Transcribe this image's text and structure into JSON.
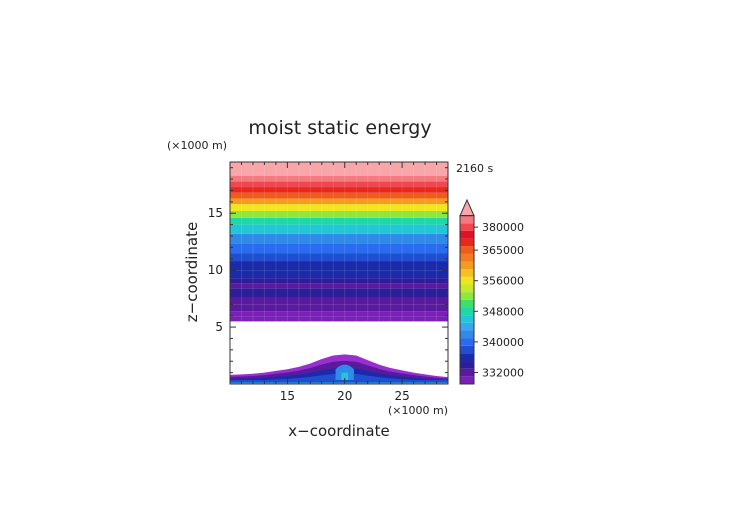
{
  "chart_data": {
    "type": "heatmap",
    "title": "moist static energy",
    "xlabel": "x−coordinate",
    "ylabel": "z−coordinate",
    "x_unit": "(×1000 m)",
    "y_unit": "(×1000 m)",
    "time_label": "2160 s",
    "xlim": [
      10,
      29
    ],
    "ylim": [
      0,
      19.5
    ],
    "x_ticks": [
      "15",
      "20",
      "25"
    ],
    "x_tick_values": [
      15,
      20,
      25
    ],
    "y_ticks": [
      "5",
      "10",
      "15"
    ],
    "y_tick_values": [
      5,
      10,
      15
    ],
    "layers": [
      {
        "z0": 5.5,
        "z1": 5.9,
        "value": 330000
      },
      {
        "z0": 5.9,
        "z1": 6.4,
        "value": 331000
      },
      {
        "z0": 6.4,
        "z1": 7.0,
        "value": 332000
      },
      {
        "z0": 7.0,
        "z1": 7.6,
        "value": 333000
      },
      {
        "z0": 7.6,
        "z1": 8.4,
        "value": 334000
      },
      {
        "z0": 8.4,
        "z1": 8.8,
        "value": 333000
      },
      {
        "z0": 8.8,
        "z1": 9.3,
        "value": 335000
      },
      {
        "z0": 9.3,
        "z1": 10.0,
        "value": 336000
      },
      {
        "z0": 10.0,
        "z1": 10.8,
        "value": 337000
      },
      {
        "z0": 10.8,
        "z1": 11.5,
        "value": 338000
      },
      {
        "z0": 11.5,
        "z1": 12.3,
        "value": 340000
      },
      {
        "z0": 12.3,
        "z1": 13.2,
        "value": 342000
      },
      {
        "z0": 13.2,
        "z1": 14.0,
        "value": 346000
      },
      {
        "z0": 14.0,
        "z1": 14.6,
        "value": 348000
      },
      {
        "z0": 14.6,
        "z1": 15.2,
        "value": 352000
      },
      {
        "z0": 15.2,
        "z1": 15.8,
        "value": 356000
      },
      {
        "z0": 15.8,
        "z1": 16.3,
        "value": 360000
      },
      {
        "z0": 16.3,
        "z1": 16.8,
        "value": 365000
      },
      {
        "z0": 16.8,
        "z1": 17.3,
        "value": 370000
      },
      {
        "z0": 17.3,
        "z1": 17.8,
        "value": 380000
      },
      {
        "z0": 17.8,
        "z1": 18.3,
        "value": 385000
      },
      {
        "z0": 18.3,
        "z1": 19.5,
        "value": 390000
      }
    ],
    "terrain": {
      "x": [
        10,
        11,
        12,
        13,
        14,
        15,
        16,
        17,
        18,
        19,
        20,
        21,
        22,
        23,
        24,
        25,
        26,
        27,
        28,
        29
      ],
      "outer_top_z": [
        0.8,
        0.85,
        0.9,
        1.0,
        1.15,
        1.3,
        1.5,
        1.8,
        2.2,
        2.5,
        2.6,
        2.5,
        2.1,
        1.7,
        1.4,
        1.2,
        1.0,
        0.85,
        0.7,
        0.6
      ]
    },
    "colorbar": {
      "labels": [
        "380000",
        "365000",
        "356000",
        "348000",
        "340000",
        "332000"
      ],
      "label_values": [
        380000,
        365000,
        356000,
        348000,
        340000,
        332000
      ],
      "levels": [
        330000,
        332000,
        334000,
        336000,
        338000,
        340000,
        342000,
        344000,
        346000,
        348000,
        350000,
        352000,
        354000,
        356000,
        358000,
        360000,
        362000,
        365000,
        370000,
        375000,
        380000,
        385000,
        390000
      ],
      "colors": [
        "#7a1fb8",
        "#5a1a9e",
        "#2d1d9a",
        "#1a2aa8",
        "#1f4ed0",
        "#2a6cf0",
        "#2f8ae8",
        "#3aa6f0",
        "#22c6d8",
        "#1fd8a8",
        "#3ee06a",
        "#8ee83a",
        "#c8e82a",
        "#f0e61a",
        "#f6c020",
        "#f59a22",
        "#f37a22",
        "#f05a1a",
        "#e8281a",
        "#e0102a",
        "#f04850",
        "#f47a82",
        "#f8a6aa"
      ]
    }
  }
}
